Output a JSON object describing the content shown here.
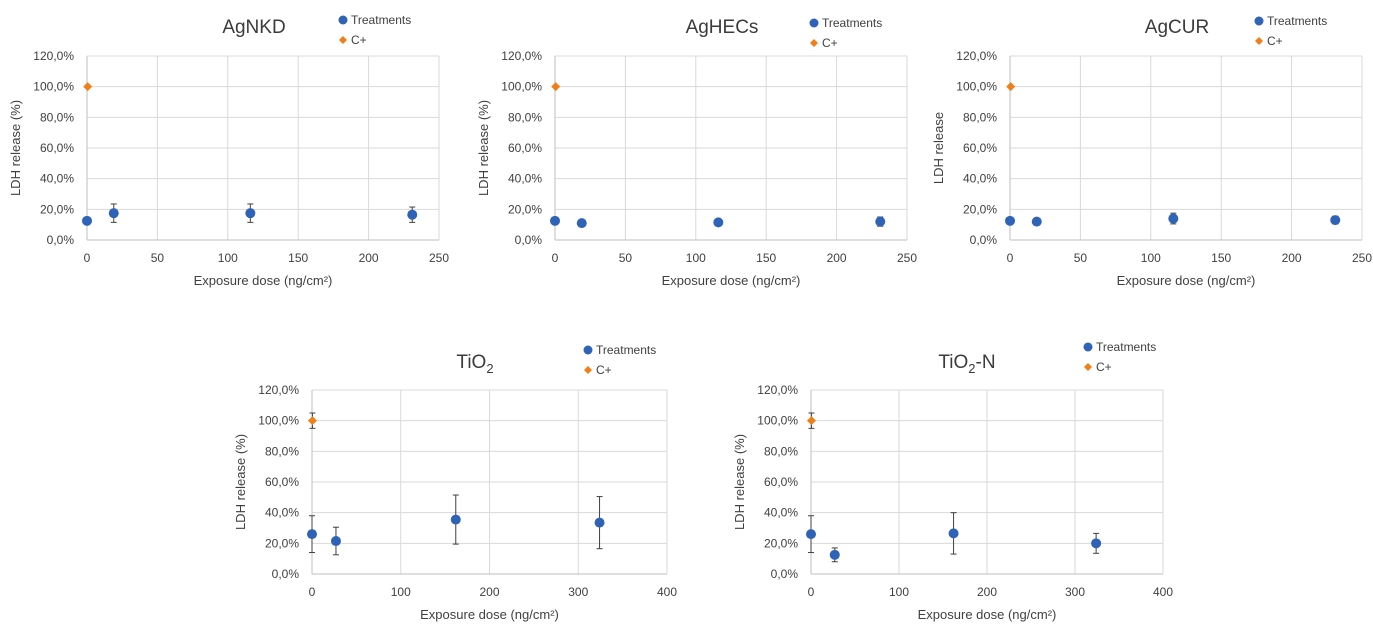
{
  "colors": {
    "treatments": "#2e63b8",
    "control": "#f07f19"
  },
  "chart_data": [
    {
      "type": "scatter",
      "title": "AgNKD",
      "title_base": "AgNKD",
      "title_sub": "",
      "title_suffix": "",
      "xlabel": "Exposure dose (ng/cm²)",
      "ylabel": "LDH release (%)",
      "xlim": [
        0,
        250
      ],
      "xticks": [
        0,
        50,
        100,
        150,
        200,
        250
      ],
      "ylim": [
        0,
        120
      ],
      "yticks": [
        0,
        20,
        40,
        60,
        80,
        100,
        120
      ],
      "ytick_labels": [
        "0,0%",
        "20,0%",
        "40,0%",
        "60,0%",
        "80,0%",
        "100,0%",
        "120,0%"
      ],
      "grid": true,
      "legend": "top-right",
      "series": [
        {
          "name": "Treatments",
          "marker": "circle",
          "points": [
            {
              "x": 0,
              "y": 12.5,
              "err": 1.5
            },
            {
              "x": 19,
              "y": 17.5,
              "err": 6
            },
            {
              "x": 116,
              "y": 17.5,
              "err": 6
            },
            {
              "x": 231,
              "y": 16.5,
              "err": 5
            }
          ]
        },
        {
          "name": "C+",
          "marker": "diamond",
          "points": [
            {
              "x": 0.5,
              "y": 100,
              "err": 0
            }
          ]
        }
      ]
    },
    {
      "type": "scatter",
      "title": "AgHECs",
      "title_base": "AgHECs",
      "title_sub": "",
      "title_suffix": "",
      "xlabel": "Exposure dose (ng/cm²)",
      "ylabel": "LDH release (%)",
      "xlim": [
        0,
        250
      ],
      "xticks": [
        0,
        50,
        100,
        150,
        200,
        250
      ],
      "ylim": [
        0,
        120
      ],
      "yticks": [
        0,
        20,
        40,
        60,
        80,
        100,
        120
      ],
      "ytick_labels": [
        "0,0%",
        "20,0%",
        "40,0%",
        "60,0%",
        "80,0%",
        "100,0%",
        "120,0%"
      ],
      "grid": true,
      "legend": "top-right",
      "series": [
        {
          "name": "Treatments",
          "marker": "circle",
          "points": [
            {
              "x": 0,
              "y": 12.5,
              "err": 1
            },
            {
              "x": 19,
              "y": 11,
              "err": 1
            },
            {
              "x": 116,
              "y": 11.5,
              "err": 1
            },
            {
              "x": 231,
              "y": 12,
              "err": 3
            }
          ]
        },
        {
          "name": "C+",
          "marker": "diamond",
          "points": [
            {
              "x": 0.5,
              "y": 100,
              "err": 0.5
            }
          ]
        }
      ]
    },
    {
      "type": "scatter",
      "title": "AgCUR",
      "title_base": "AgCUR",
      "title_sub": "",
      "title_suffix": "",
      "xlabel": "Exposure dose (ng/cm²)",
      "ylabel": "LDH release",
      "xlim": [
        0,
        250
      ],
      "xticks": [
        0,
        50,
        100,
        150,
        200,
        250
      ],
      "ylim": [
        0,
        120
      ],
      "yticks": [
        0,
        20,
        40,
        60,
        80,
        100,
        120
      ],
      "ytick_labels": [
        "0,0%",
        "20,0%",
        "40,0%",
        "60,0%",
        "80,0%",
        "100,0%",
        "120,0%"
      ],
      "grid": true,
      "legend": "top-right",
      "series": [
        {
          "name": "Treatments",
          "marker": "circle",
          "points": [
            {
              "x": 0,
              "y": 12.5,
              "err": 2
            },
            {
              "x": 19,
              "y": 12,
              "err": 1.5
            },
            {
              "x": 116,
              "y": 14,
              "err": 3.5
            },
            {
              "x": 231,
              "y": 13,
              "err": 2.5
            }
          ]
        },
        {
          "name": "C+",
          "marker": "diamond",
          "points": [
            {
              "x": 0.5,
              "y": 100,
              "err": 0.5
            }
          ]
        }
      ]
    },
    {
      "type": "scatter",
      "title": "TiO2",
      "title_base": "TiO",
      "title_sub": "2",
      "title_suffix": "",
      "xlabel": "Exposure dose (ng/cm²)",
      "ylabel": "LDH release (%)",
      "xlim": [
        0,
        400
      ],
      "xticks": [
        0,
        100,
        200,
        300,
        400
      ],
      "ylim": [
        0,
        120
      ],
      "yticks": [
        0,
        20,
        40,
        60,
        80,
        100,
        120
      ],
      "ytick_labels": [
        "0,0%",
        "20,0%",
        "40,0%",
        "60,0%",
        "80,0%",
        "100,0%",
        "120,0%"
      ],
      "grid": true,
      "legend": "top-right",
      "series": [
        {
          "name": "Treatments",
          "marker": "circle",
          "points": [
            {
              "x": 0,
              "y": 26,
              "err": 12
            },
            {
              "x": 27,
              "y": 21.5,
              "err": 9
            },
            {
              "x": 162,
              "y": 35.5,
              "err": 16
            },
            {
              "x": 324,
              "y": 33.5,
              "err": 17
            }
          ]
        },
        {
          "name": "C+",
          "marker": "diamond",
          "points": [
            {
              "x": 0.5,
              "y": 100,
              "err": 5
            }
          ]
        }
      ]
    },
    {
      "type": "scatter",
      "title": "TiO2-N",
      "title_base": "TiO",
      "title_sub": "2",
      "title_suffix": "-N",
      "xlabel": "Exposure dose (ng/cm²)",
      "ylabel": "LDH release (%)",
      "xlim": [
        0,
        400
      ],
      "xticks": [
        0,
        100,
        200,
        300,
        400
      ],
      "ylim": [
        0,
        120
      ],
      "yticks": [
        0,
        20,
        40,
        60,
        80,
        100,
        120
      ],
      "ytick_labels": [
        "0,0%",
        "20,0%",
        "40,0%",
        "60,0%",
        "80,0%",
        "100,0%",
        "120,0%"
      ],
      "grid": true,
      "legend": "top-right",
      "series": [
        {
          "name": "Treatments",
          "marker": "circle",
          "points": [
            {
              "x": 0,
              "y": 26,
              "err": 12
            },
            {
              "x": 27,
              "y": 12.5,
              "err": 4.5
            },
            {
              "x": 162,
              "y": 26.5,
              "err": 13.5
            },
            {
              "x": 324,
              "y": 20,
              "err": 6.5
            }
          ]
        },
        {
          "name": "C+",
          "marker": "diamond",
          "points": [
            {
              "x": 0.5,
              "y": 100,
              "err": 5
            }
          ]
        }
      ]
    }
  ]
}
